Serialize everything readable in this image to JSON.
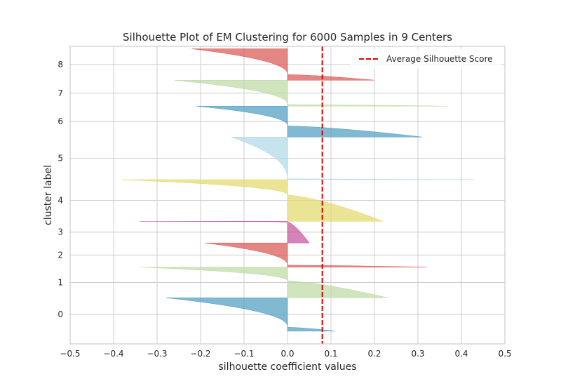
{
  "chart_data": {
    "type": "area",
    "title": "Silhouette Plot of EM Clustering for 6000 Samples in 9 Centers",
    "xlabel": "silhouette coefficient values",
    "ylabel": "cluster label",
    "xlim": [
      -0.5,
      0.5
    ],
    "x_ticks": [
      -0.5,
      -0.4,
      -0.3,
      -0.2,
      -0.1,
      0.0,
      0.1,
      0.2,
      0.3,
      0.4,
      0.5
    ],
    "x_tick_labels": [
      "−0.5",
      "−0.4",
      "−0.3",
      "−0.2",
      "−0.1",
      "0.0",
      "0.1",
      "0.2",
      "0.3",
      "0.4",
      "0.5"
    ],
    "grid": true,
    "legend_position": "top-right",
    "average_silhouette_score": 0.08,
    "average_line": {
      "label": "Average Silhouette Score",
      "color": "#e00000",
      "style": "dashed"
    },
    "clusters": [
      {
        "label": "0",
        "color": "#4c9bc1",
        "y_start": 10,
        "y_end": 1350,
        "max": 0.11,
        "min": -0.28,
        "zero_frac": 0.12
      },
      {
        "label": "1",
        "color": "#bcd8a2",
        "y_start": 1350,
        "y_end": 2580,
        "max": 0.23,
        "min": -0.34,
        "zero_frac": 0.55
      },
      {
        "label": "2",
        "color": "#d9534f",
        "y_start": 2580,
        "y_end": 3550,
        "max": 0.32,
        "min": -0.19,
        "zero_frac": 0.08
      },
      {
        "label": "3",
        "color": "#c44e9a",
        "y_start": 3550,
        "y_end": 4420,
        "max": 0.05,
        "min": -0.34,
        "zero_frac": 0.97
      },
      {
        "label": "4",
        "color": "#e2d968",
        "y_start": 4420,
        "y_end": 6090,
        "max": 0.22,
        "min": -0.38,
        "zero_frac": 0.63
      },
      {
        "label": "5",
        "color": "#add8e6",
        "y_start": 6090,
        "y_end": 7800,
        "max": 0.43,
        "min": -0.13,
        "zero_frac": 0.01
      },
      {
        "label": "6",
        "color": "#4c9bc1",
        "y_start": 7800,
        "y_end": 9040,
        "max": 0.31,
        "min": -0.21,
        "zero_frac": 0.36
      },
      {
        "label": "7",
        "color": "#bcd8a2",
        "y_start": 9040,
        "y_end": 10080,
        "max": 0.37,
        "min": -0.26,
        "zero_frac": 0.06
      },
      {
        "label": "8",
        "color": "#d9534f",
        "y_start": 10080,
        "y_end": 11340,
        "max": 0.2,
        "min": -0.22,
        "zero_frac": 0.18
      }
    ],
    "ylim": [
      -500,
      11440
    ]
  }
}
